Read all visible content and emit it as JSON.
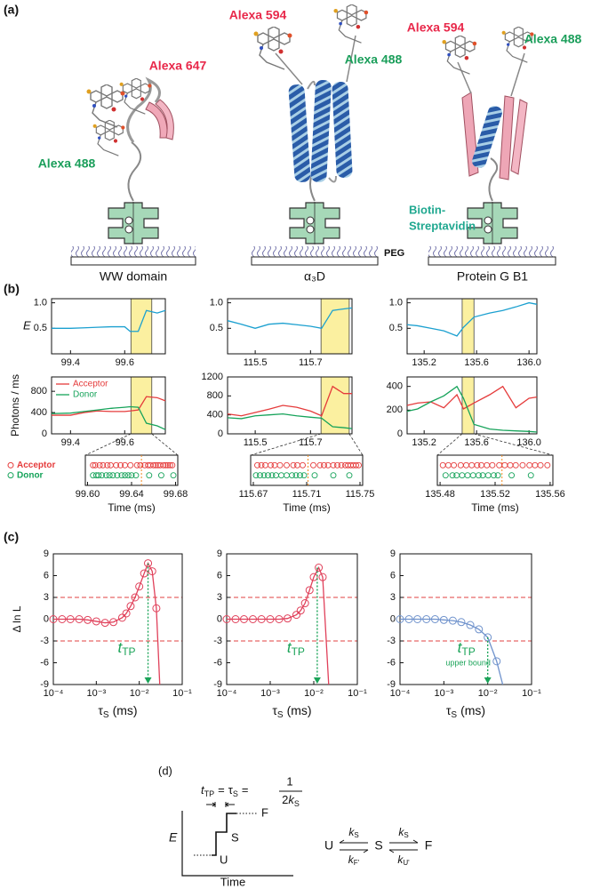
{
  "panel_labels": [
    "(a)",
    "(b)",
    "(c)",
    "(d)"
  ],
  "panel_a": {
    "constructs": [
      {
        "name": "WW domain",
        "dyes": [
          "Alexa 647",
          "Alexa 488"
        ]
      },
      {
        "name": "α₃D",
        "dyes": [
          "Alexa 594",
          "Alexa 488"
        ]
      },
      {
        "name": "Protein G B1",
        "dyes": [
          "Alexa 594",
          "Alexa 488"
        ]
      }
    ],
    "linker_label": [
      "Biotin-",
      "Streptavidin"
    ],
    "surface_label": "PEG"
  },
  "panel_d": {
    "equation": {
      "lhs": {
        "symbol": "t",
        "sub": "TP"
      },
      "eq": "=",
      "mid": {
        "symbol": "τ",
        "sub": "S"
      },
      "numerator": "1",
      "denominator": [
        "2",
        "k",
        "S"
      ]
    },
    "ylabel": "E",
    "xlabel": "Time",
    "levels": [
      "U",
      "S",
      "F"
    ],
    "states": [
      "U",
      "S",
      "F"
    ],
    "rates": [
      {
        "symbol": "k",
        "sub": "S"
      },
      {
        "symbol": "k",
        "sub": "F'"
      },
      {
        "symbol": "k",
        "sub": "S"
      },
      {
        "symbol": "k",
        "sub": "U'"
      }
    ]
  },
  "chart_data": [
    {
      "type": "line",
      "ylabel": "E",
      "x": [
        99.33,
        99.4,
        99.45,
        99.5,
        99.55,
        99.6,
        99.62,
        99.65,
        99.68,
        99.72,
        99.75
      ],
      "series": [
        {
          "color": "#1ba0d0",
          "values": [
            0.5,
            0.5,
            0.51,
            0.52,
            0.53,
            0.53,
            0.44,
            0.44,
            0.85,
            0.8,
            0.85
          ]
        }
      ],
      "xlim": [
        99.33,
        99.75
      ],
      "ylim": [
        0,
        1.08
      ],
      "xticks": [
        99.4,
        99.6
      ],
      "yticks": [
        0.5,
        {
          "value": 1,
          "label": "1.0"
        }
      ],
      "highlight": [
        99.623,
        99.7
      ],
      "highlight_color": "#fbf0a0"
    },
    {
      "type": "line",
      "x": [
        115.4,
        115.45,
        115.5,
        115.55,
        115.6,
        115.65,
        115.7,
        115.74,
        115.78,
        115.82,
        115.85
      ],
      "series": [
        {
          "color": "#1ba0d0",
          "values": [
            0.65,
            0.58,
            0.5,
            0.58,
            0.6,
            0.57,
            0.54,
            0.5,
            0.85,
            0.88,
            0.9
          ]
        }
      ],
      "xlim": [
        115.4,
        115.85
      ],
      "ylim": [
        0,
        1.08
      ],
      "xticks": [
        115.5,
        115.7
      ],
      "yticks": [
        0.5,
        {
          "value": 1,
          "label": "1.0"
        }
      ],
      "highlight": [
        115.738,
        115.84
      ],
      "highlight_color": "#fbf0a0"
    },
    {
      "type": "line",
      "x": [
        135.07,
        135.15,
        135.25,
        135.35,
        135.45,
        135.5,
        135.58,
        135.7,
        135.8,
        135.9,
        136.0,
        136.06
      ],
      "series": [
        {
          "color": "#1ba0d0",
          "values": [
            0.57,
            0.55,
            0.5,
            0.45,
            0.35,
            0.52,
            0.72,
            0.8,
            0.85,
            0.92,
            1.0,
            0.97
          ]
        }
      ],
      "xlim": [
        135.07,
        136.06
      ],
      "ylim": [
        0,
        1.08
      ],
      "xticks": [
        135.2,
        135.6,
        {
          "value": 136,
          "label": "136.0"
        }
      ],
      "yticks": [
        0.5,
        {
          "value": 1,
          "label": "1.0"
        }
      ],
      "highlight": [
        135.49,
        135.58
      ],
      "highlight_color": "#fbf0a0"
    },
    {
      "type": "line",
      "ylabel": "Photons / ms",
      "legend": "upper left",
      "x": [
        99.33,
        99.4,
        99.45,
        99.5,
        99.55,
        99.6,
        99.62,
        99.65,
        99.68,
        99.72,
        99.75
      ],
      "series": [
        {
          "name": "Acceptor",
          "color": "#e53b3b",
          "values": [
            350,
            350,
            400,
            430,
            420,
            420,
            430,
            450,
            700,
            680,
            620
          ]
        },
        {
          "name": "Donor",
          "color": "#16a35a",
          "values": [
            380,
            390,
            420,
            450,
            480,
            500,
            510,
            500,
            200,
            150,
            80
          ]
        }
      ],
      "xlim": [
        99.33,
        99.75
      ],
      "ylim": [
        0,
        1070
      ],
      "xticks": [
        99.4,
        99.6
      ],
      "yticks": [
        0,
        400,
        800
      ],
      "highlight": [
        99.623,
        99.7
      ],
      "highlight_color": "#fbf0a0"
    },
    {
      "type": "line",
      "x": [
        115.4,
        115.45,
        115.5,
        115.55,
        115.6,
        115.65,
        115.7,
        115.74,
        115.78,
        115.82,
        115.85
      ],
      "series": [
        {
          "color": "#e53b3b",
          "values": [
            420,
            380,
            450,
            520,
            600,
            560,
            480,
            380,
            1000,
            850,
            850
          ]
        },
        {
          "color": "#16a35a",
          "values": [
            340,
            320,
            380,
            400,
            420,
            380,
            350,
            330,
            150,
            130,
            110
          ]
        }
      ],
      "xlim": [
        115.4,
        115.85
      ],
      "ylim": [
        0,
        1200
      ],
      "xticks": [
        115.5,
        115.7
      ],
      "yticks": [
        0,
        400,
        800,
        1200
      ],
      "highlight": [
        115.738,
        115.84
      ],
      "highlight_color": "#fbf0a0"
    },
    {
      "type": "line",
      "x": [
        135.07,
        135.15,
        135.25,
        135.35,
        135.45,
        135.5,
        135.58,
        135.7,
        135.8,
        135.9,
        136.0,
        136.06
      ],
      "series": [
        {
          "color": "#e53b3b",
          "values": [
            240,
            260,
            270,
            220,
            330,
            210,
            260,
            330,
            400,
            220,
            300,
            310
          ]
        },
        {
          "color": "#16a35a",
          "values": [
            190,
            210,
            270,
            320,
            400,
            300,
            80,
            40,
            30,
            25,
            20,
            15
          ]
        }
      ],
      "xlim": [
        135.07,
        136.06
      ],
      "ylim": [
        0,
        480
      ],
      "xticks": [
        135.2,
        135.6,
        {
          "value": 136,
          "label": "136.0"
        }
      ],
      "yticks": [
        0,
        200,
        400
      ],
      "highlight": [
        135.49,
        135.58
      ],
      "highlight_color": "#fbf0a0"
    },
    {
      "type": "raster",
      "xlabel": "Time (ms)",
      "legend": "left",
      "xlim": [
        99.598,
        99.682
      ],
      "xticks": [
        {
          "value": 99.6,
          "label": "99.60"
        },
        99.64,
        99.68
      ],
      "marker_x": 99.649,
      "marker_color": "#f08a20",
      "series": [
        {
          "name": "Acceptor",
          "color": "#e53b3b",
          "values": [
            99.605,
            99.607,
            99.611,
            99.614,
            99.618,
            99.621,
            99.626,
            99.63,
            99.634,
            99.639,
            99.645,
            99.648,
            99.652,
            99.655,
            99.657,
            99.66,
            99.662,
            99.664,
            99.666,
            99.669,
            99.671,
            99.673,
            99.675,
            99.677
          ]
        },
        {
          "name": "Donor",
          "color": "#16a35a",
          "values": [
            99.605,
            99.608,
            99.61,
            99.613,
            99.617,
            99.62,
            99.623,
            99.627,
            99.631,
            99.634,
            99.637,
            99.64,
            99.644,
            99.656,
            99.667,
            99.678
          ]
        }
      ]
    },
    {
      "type": "raster",
      "xlabel": "Time (ms)",
      "xlim": [
        115.668,
        115.752
      ],
      "xticks": [
        115.67,
        115.71,
        115.75
      ],
      "marker_x": 115.711,
      "marker_color": "#f08a20",
      "series": [
        {
          "color": "#e53b3b",
          "values": [
            115.673,
            115.676,
            115.679,
            115.683,
            115.686,
            115.69,
            115.695,
            115.7,
            115.703,
            115.707,
            115.715,
            115.72,
            115.723,
            115.726,
            115.73,
            115.733,
            115.736,
            115.739,
            115.741,
            115.743,
            115.745,
            115.747,
            115.749
          ]
        },
        {
          "color": "#16a35a",
          "values": [
            115.672,
            115.675,
            115.678,
            115.681,
            115.684,
            115.687,
            115.691,
            115.695,
            115.699,
            115.702,
            115.705,
            115.708,
            115.716,
            115.73,
            115.742
          ]
        }
      ]
    },
    {
      "type": "raster",
      "xlabel": "Time (ms)",
      "xlim": [
        135.478,
        135.562
      ],
      "xticks": [
        135.48,
        135.52,
        135.56
      ],
      "marker_x": 135.525,
      "marker_color": "#f08a20",
      "series": [
        {
          "color": "#e53b3b",
          "values": [
            135.482,
            135.486,
            135.49,
            135.495,
            135.499,
            135.503,
            135.507,
            135.51,
            135.514,
            135.518,
            135.523,
            135.527,
            135.531,
            135.535,
            135.54,
            135.545,
            135.549,
            135.553,
            135.558
          ]
        },
        {
          "color": "#16a35a",
          "values": [
            135.484,
            135.489,
            135.492,
            135.496,
            135.5,
            135.504,
            135.508,
            135.511,
            135.515,
            135.519,
            135.522,
            135.532,
            135.546
          ]
        }
      ]
    },
    {
      "type": "line",
      "xscale": "log",
      "ylabel": "Δ ln L",
      "xlabel": {
        "symbol": "τ",
        "sub": "S",
        "unit": "(ms)"
      },
      "color": "#e0405a",
      "x": [
        0.0001,
        0.00016,
        0.00025,
        0.0004,
        0.00063,
        0.001,
        0.0016,
        0.0025,
        0.004,
        0.005,
        0.0063,
        0.008,
        0.01,
        0.013,
        0.016,
        0.02,
        0.025
      ],
      "values": [
        0,
        0,
        0,
        0,
        -0.1,
        -0.3,
        -0.5,
        -0.4,
        0.2,
        0.8,
        1.8,
        3,
        4.5,
        6.3,
        7.7,
        6.6,
        1.5
      ],
      "fit_x": [
        0.0001,
        0.00016,
        0.00025,
        0.0004,
        0.00063,
        0.001,
        0.0016,
        0.0025,
        0.004,
        0.005,
        0.0063,
        0.008,
        0.01,
        0.013,
        0.016,
        0.02,
        0.025,
        0.03
      ],
      "fit_values": [
        0,
        0,
        0,
        0,
        -0.1,
        -0.3,
        -0.5,
        -0.4,
        0.2,
        0.8,
        1.8,
        3,
        4.5,
        6.3,
        7.7,
        6.6,
        1.5,
        -9
      ],
      "xlim": [
        0.0001,
        0.1
      ],
      "ylim": [
        -9,
        9
      ],
      "xticks": [
        {
          "value": 0.0001,
          "label": "10⁻⁴"
        },
        {
          "value": 0.001,
          "label": "10⁻³"
        },
        {
          "value": 0.01,
          "label": "10⁻²"
        },
        {
          "value": 0.1,
          "label": "10⁻¹"
        }
      ],
      "yticks": [
        -9,
        -6,
        -3,
        0,
        3,
        6,
        9
      ],
      "hlines": [
        3,
        -3
      ],
      "hline_color": "#e04040",
      "marker_x": 0.016,
      "marker_color": "#1aa358",
      "annotation": {
        "symbol": "t",
        "sub": "TP"
      }
    },
    {
      "type": "line",
      "xscale": "log",
      "xlabel": {
        "symbol": "τ",
        "sub": "S",
        "unit": "(ms)"
      },
      "color": "#e0405a",
      "x": [
        0.0001,
        0.00016,
        0.00025,
        0.0004,
        0.00063,
        0.001,
        0.0016,
        0.0025,
        0.004,
        0.005,
        0.0063,
        0.008,
        0.01,
        0.013,
        0.016
      ],
      "values": [
        0,
        0,
        0,
        0,
        0,
        0,
        0,
        0.1,
        0.6,
        1.2,
        2.2,
        4,
        5.8,
        7.1,
        5.8
      ],
      "fit_x": [
        0.0001,
        0.00016,
        0.00025,
        0.0004,
        0.00063,
        0.001,
        0.0016,
        0.0025,
        0.004,
        0.005,
        0.0063,
        0.008,
        0.01,
        0.013,
        0.016,
        0.022
      ],
      "fit_values": [
        0,
        0,
        0,
        0,
        0,
        0,
        0,
        0.1,
        0.6,
        1.2,
        2.2,
        4,
        5.8,
        7.1,
        5.8,
        -9
      ],
      "xlim": [
        0.0001,
        0.1
      ],
      "ylim": [
        -9,
        9
      ],
      "xticks": [
        {
          "value": 0.0001,
          "label": "10⁻⁴"
        },
        {
          "value": 0.001,
          "label": "10⁻³"
        },
        {
          "value": 0.01,
          "label": "10⁻²"
        },
        {
          "value": 0.1,
          "label": "10⁻¹"
        }
      ],
      "yticks": [
        -9,
        -6,
        -3,
        0,
        3,
        6,
        9
      ],
      "hlines": [
        3,
        -3
      ],
      "hline_color": "#e04040",
      "marker_x": 0.012,
      "marker_color": "#1aa358",
      "annotation": {
        "symbol": "t",
        "sub": "TP"
      }
    },
    {
      "type": "line",
      "xscale": "log",
      "xlabel": {
        "symbol": "τ",
        "sub": "S",
        "unit": "(ms)"
      },
      "color": "#6f92cc",
      "x": [
        0.0001,
        0.00016,
        0.00025,
        0.0004,
        0.00063,
        0.001,
        0.0016,
        0.0025,
        0.004,
        0.0063,
        0.01,
        0.016
      ],
      "values": [
        0,
        0,
        0,
        0,
        0,
        -0.1,
        -0.2,
        -0.4,
        -0.8,
        -1.4,
        -2.5,
        -5.8
      ],
      "fit_x": [
        0.0001,
        0.00016,
        0.00025,
        0.0004,
        0.00063,
        0.001,
        0.0016,
        0.0025,
        0.004,
        0.0063,
        0.01,
        0.016,
        0.022
      ],
      "fit_values": [
        0,
        0,
        0,
        0,
        0,
        -0.1,
        -0.2,
        -0.4,
        -0.8,
        -1.4,
        -2.5,
        -5.8,
        -9
      ],
      "xlim": [
        0.0001,
        0.1
      ],
      "ylim": [
        -9,
        9
      ],
      "xticks": [
        {
          "value": 0.0001,
          "label": "10⁻⁴"
        },
        {
          "value": 0.001,
          "label": "10⁻³"
        },
        {
          "value": 0.01,
          "label": "10⁻²"
        },
        {
          "value": 0.1,
          "label": "10⁻¹"
        }
      ],
      "yticks": [
        -9,
        -6,
        -3,
        0,
        3,
        6,
        9
      ],
      "hlines": [
        3,
        -3
      ],
      "hline_color": "#e04040",
      "marker_x": 0.01,
      "marker_color": "#1aa358",
      "annotation": {
        "symbol": "t",
        "sub": "TP"
      },
      "annotation_note": "upper bound"
    }
  ]
}
